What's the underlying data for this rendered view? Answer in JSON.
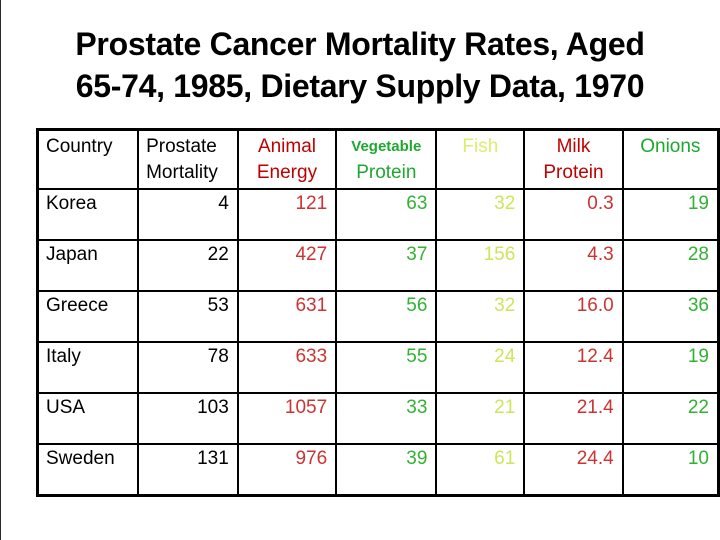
{
  "title": {
    "line1": "Prostate Cancer Mortality Rates, Aged",
    "line2": "65-74, 1985, Dietary Supply Data, 1970"
  },
  "colors": {
    "black": "#000000",
    "red_header": "#C00000",
    "red_value": "#CC3333",
    "green_header": "#1EA832",
    "green_value": "#32B232",
    "yellow_green_header": "#D9EF6E",
    "yellow_green_value": "#CCE65C"
  },
  "table": {
    "columns": [
      {
        "id": "country",
        "label_lines": [
          {
            "text": "Country"
          }
        ],
        "header_color": "black",
        "value_color": "black",
        "header_align": "left",
        "value_align": "left"
      },
      {
        "id": "prostate_mortality",
        "label_lines": [
          {
            "text": "Prostate"
          },
          {
            "text": "Mortality"
          }
        ],
        "header_color": "black",
        "value_color": "black",
        "header_align": "left",
        "value_align": "right"
      },
      {
        "id": "animal_energy",
        "label_lines": [
          {
            "text": "Animal"
          },
          {
            "text": "Energy"
          }
        ],
        "header_color": "red_header",
        "value_color": "red_value",
        "header_align": "center",
        "value_align": "right"
      },
      {
        "id": "vegetable_protein",
        "label_lines": [
          {
            "text": "Vegetable",
            "small_bold": true
          },
          {
            "text": "Protein"
          }
        ],
        "header_color": "green_header",
        "value_color": "green_value",
        "header_align": "center",
        "value_align": "right"
      },
      {
        "id": "fish",
        "label_lines": [
          {
            "text": "Fish"
          }
        ],
        "header_color": "yellow_green_header",
        "value_color": "yellow_green_value",
        "header_align": "center",
        "value_align": "right"
      },
      {
        "id": "milk_protein",
        "label_lines": [
          {
            "text": "Milk"
          },
          {
            "text": "Protein"
          }
        ],
        "header_color": "red_header",
        "value_color": "red_value",
        "header_align": "center",
        "value_align": "right"
      },
      {
        "id": "onions",
        "label_lines": [
          {
            "text": "Onions"
          }
        ],
        "header_color": "green_header",
        "value_color": "green_value",
        "header_align": "center",
        "value_align": "right"
      }
    ],
    "rows": [
      {
        "country": "Korea",
        "prostate_mortality": "4",
        "animal_energy": "121",
        "vegetable_protein": "63",
        "fish": "32",
        "milk_protein": "0.3",
        "onions": "19"
      },
      {
        "country": "Japan",
        "prostate_mortality": "22",
        "animal_energy": "427",
        "vegetable_protein": "37",
        "fish": "156",
        "milk_protein": "4.3",
        "onions": "28"
      },
      {
        "country": "Greece",
        "prostate_mortality": "53",
        "animal_energy": "631",
        "vegetable_protein": "56",
        "fish": "32",
        "milk_protein": "16.0",
        "onions": "36"
      },
      {
        "country": "Italy",
        "prostate_mortality": "78",
        "animal_energy": "633",
        "vegetable_protein": "55",
        "fish": "24",
        "milk_protein": "12.4",
        "onions": "19"
      },
      {
        "country": "USA",
        "prostate_mortality": "103",
        "animal_energy": "1057",
        "vegetable_protein": "33",
        "fish": "21",
        "milk_protein": "21.4",
        "onions": "22"
      },
      {
        "country": "Sweden",
        "prostate_mortality": "131",
        "animal_energy": "976",
        "vegetable_protein": "39",
        "fish": "61",
        "milk_protein": "24.4",
        "onions": "10"
      }
    ]
  }
}
